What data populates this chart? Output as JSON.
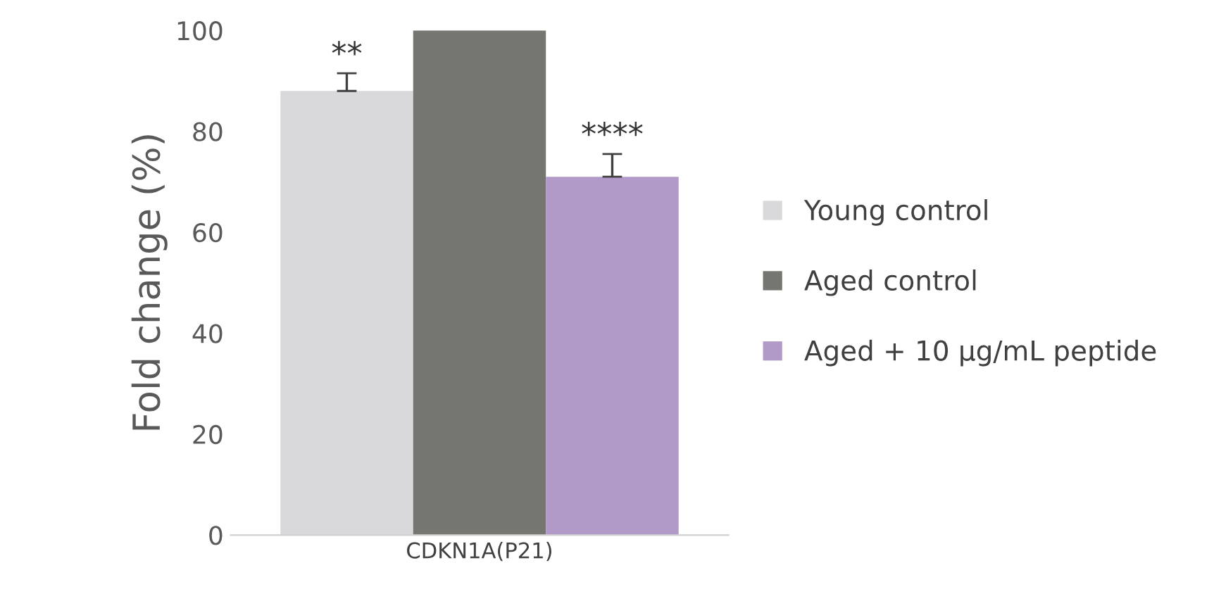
{
  "chart_data": {
    "type": "bar",
    "ylabel": "Fold change (%)",
    "categories": [
      "CDKN1A(P21)"
    ],
    "series": [
      {
        "name": "Young control",
        "color": "#d9d9db",
        "values": [
          88
        ],
        "errors": [
          3.5
        ]
      },
      {
        "name": "Aged control",
        "color": "#767670",
        "values": [
          100
        ],
        "errors": [
          null
        ]
      },
      {
        "name": "Aged + 10 µg/mL peptide",
        "color": "#b19ac7",
        "values": [
          71
        ],
        "errors": [
          4.5
        ]
      }
    ],
    "ylim": [
      0,
      100
    ],
    "yticks": [
      0,
      20,
      40,
      60,
      80,
      100
    ],
    "grid": false,
    "legend": "right",
    "annotations": [
      "**",
      "****"
    ]
  }
}
